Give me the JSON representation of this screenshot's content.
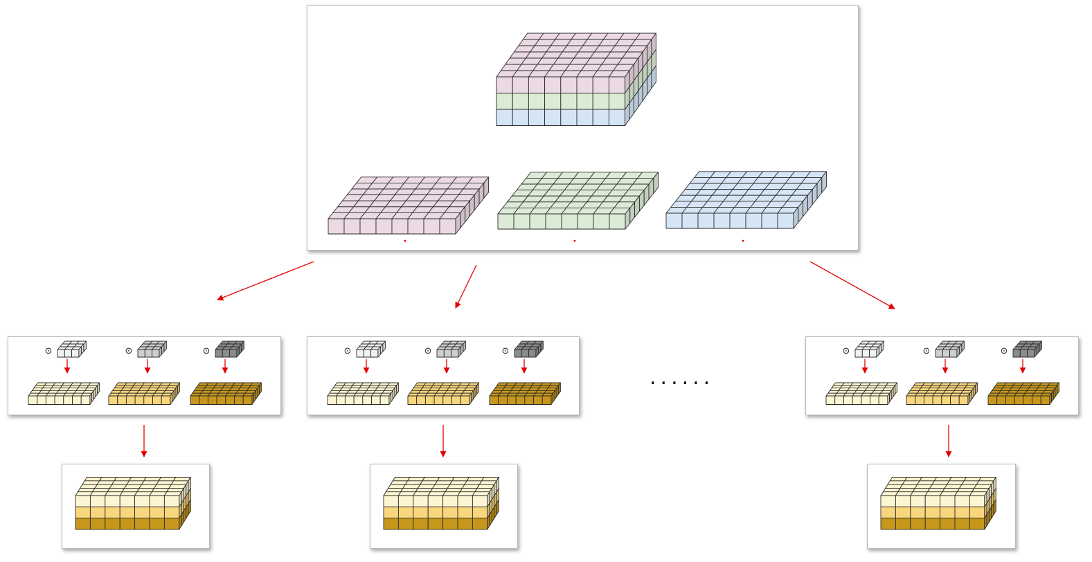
{
  "colors": {
    "pink": "#EBD9E4",
    "green": "#DCEBD6",
    "blue": "#D6E5F6",
    "light_yellow": "#FDF6D2",
    "mid_yellow": "#F8D67E",
    "dark_gold": "#C6971B",
    "kernel_light": "#F2F2F2",
    "kernel_mid": "#CFCFCF",
    "kernel_dark": "#8C8C8C",
    "arrow": "#E50000",
    "edge": "#2B2B2B"
  },
  "diagram": {
    "ellipsis": "......",
    "operator_symbol": "⊙",
    "input_volume": {
      "layers": [
        "pink",
        "green",
        "blue"
      ]
    },
    "channel_slices": [
      "pink",
      "green",
      "blue"
    ],
    "filter_groups": [
      {
        "kernels": [
          "kernel_light",
          "kernel_mid",
          "kernel_dark"
        ],
        "outputs": [
          "light_yellow",
          "mid_yellow",
          "dark_gold"
        ]
      },
      {
        "kernels": [
          "kernel_light",
          "kernel_mid",
          "kernel_dark"
        ],
        "outputs": [
          "light_yellow",
          "mid_yellow",
          "dark_gold"
        ]
      },
      {
        "kernels": [
          "kernel_light",
          "kernel_mid",
          "kernel_dark"
        ],
        "outputs": [
          "light_yellow",
          "mid_yellow",
          "dark_gold"
        ]
      }
    ]
  }
}
